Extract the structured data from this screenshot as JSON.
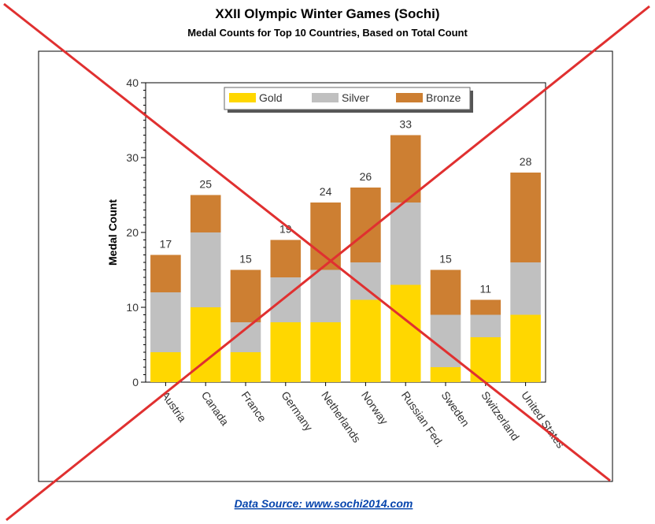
{
  "chart_data": {
    "type": "bar",
    "stacked": true,
    "title": "XXII Olympic Winter Games (Sochi)",
    "subtitle": "Medal Counts for Top 10 Countries, Based on Total Count",
    "ylabel": "Medal Count",
    "xlabel": "",
    "ylim": [
      0,
      40
    ],
    "yticks": [
      0,
      10,
      20,
      30,
      40
    ],
    "categories": [
      "Austria",
      "Canada",
      "France",
      "Germany",
      "Netherlands",
      "Norway",
      "Russian Fed.",
      "Sweden",
      "Switzerland",
      "United States"
    ],
    "series": [
      {
        "name": "Gold",
        "color": "#ffd700",
        "values": [
          4,
          10,
          4,
          8,
          8,
          11,
          13,
          2,
          6,
          9
        ]
      },
      {
        "name": "Silver",
        "color": "#c0c0c0",
        "values": [
          8,
          10,
          4,
          6,
          7,
          5,
          11,
          7,
          3,
          7
        ]
      },
      {
        "name": "Bronze",
        "color": "#cd7f32",
        "values": [
          5,
          5,
          7,
          5,
          9,
          10,
          9,
          6,
          2,
          12
        ]
      }
    ],
    "totals": [
      "17",
      "25",
      "15",
      "19",
      "24",
      "26",
      "33",
      "15",
      "11",
      "28"
    ],
    "legend_position": "top-center",
    "grid": false
  },
  "footer": {
    "source_text": "Data Source: www.sochi2014.com"
  },
  "overlay": {
    "description_color": "#e03030"
  }
}
